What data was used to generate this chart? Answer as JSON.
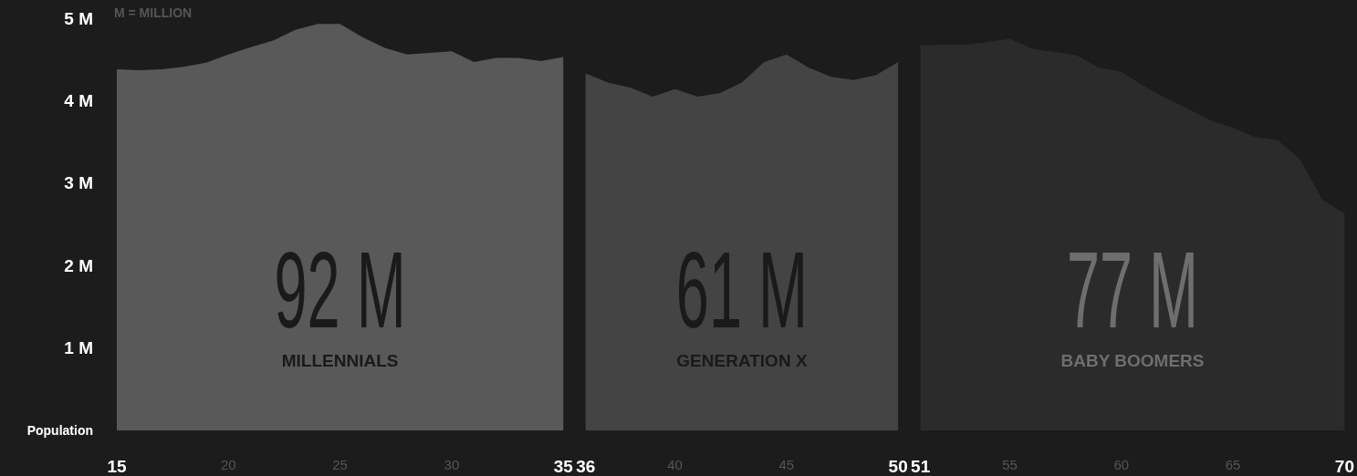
{
  "chart_data": {
    "type": "area",
    "subtitle": "M = MILLION",
    "ylabel": "Population",
    "annotations": [
      "92 M",
      "MILLENNIALS",
      "61 M",
      "GENERATION X",
      "77 M",
      "BABY BOOMERS"
    ],
    "series": [
      {
        "color": "#595959",
        "x": [
          15,
          16,
          17,
          18,
          19,
          20,
          21,
          22,
          23,
          24,
          25,
          26,
          27,
          28,
          29,
          30,
          31,
          32,
          33,
          34,
          35
        ],
        "values": [
          4.38,
          4.37,
          4.38,
          4.41,
          4.46,
          4.56,
          4.65,
          4.73,
          4.86,
          4.93,
          4.93,
          4.77,
          4.64,
          4.56,
          4.58,
          4.6,
          4.47,
          4.52,
          4.52,
          4.48,
          4.53
        ]
      },
      {
        "color": "#444444",
        "x": [
          36,
          37,
          38,
          39,
          40,
          41,
          42,
          43,
          44,
          45,
          46,
          47,
          48,
          49,
          50
        ],
        "values": [
          4.33,
          4.22,
          4.16,
          4.05,
          4.14,
          4.05,
          4.09,
          4.22,
          4.47,
          4.56,
          4.4,
          4.29,
          4.25,
          4.31,
          4.47
        ]
      },
      {
        "color": "#2b2b2b",
        "x": [
          51,
          52,
          53,
          54,
          55,
          56,
          57,
          58,
          59,
          60,
          61,
          62,
          63,
          64,
          65,
          66,
          67,
          68,
          69,
          70
        ],
        "values": [
          4.67,
          4.68,
          4.68,
          4.71,
          4.75,
          4.63,
          4.59,
          4.55,
          4.4,
          4.35,
          4.18,
          4.03,
          3.9,
          3.76,
          3.67,
          3.56,
          3.52,
          3.29,
          2.8,
          2.63
        ]
      }
    ],
    "xlim": [
      15,
      70
    ],
    "xticks": [
      15,
      20,
      25,
      30,
      35,
      36,
      40,
      45,
      50,
      51,
      55,
      60,
      65,
      70
    ],
    "ylim": [
      0,
      5
    ],
    "yticks": [
      {
        "value": 1,
        "label": "1 M"
      },
      {
        "value": 2,
        "label": "2 M"
      },
      {
        "value": 3,
        "label": "3 M"
      },
      {
        "value": 4,
        "label": "4 M"
      },
      {
        "value": 5,
        "label": "5 M"
      }
    ]
  }
}
